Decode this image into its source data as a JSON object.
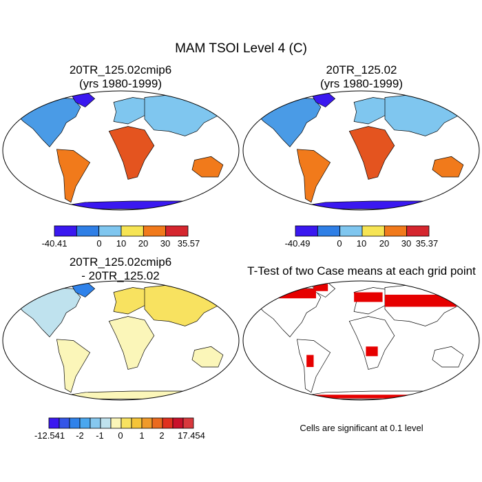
{
  "main_title": "MAM TSOI Level 4 (C)",
  "panels": [
    {
      "title_line1": "20TR_125.02cmip6",
      "title_line2": "(yrs 1980-1999)",
      "colorbar": {
        "colors": [
          "#3a18f0",
          "#2f7fe6",
          "#7fc6ef",
          "#f6e454",
          "#f17a1b",
          "#d5262e"
        ],
        "labels": [
          "-40.41",
          "0",
          "10",
          "20",
          "30",
          "35.57"
        ]
      }
    },
    {
      "title_line1": "20TR_125.02",
      "title_line2": "(yrs 1980-1999)",
      "colorbar": {
        "colors": [
          "#3a18f0",
          "#2f7fe6",
          "#7fc6ef",
          "#f6e454",
          "#f17a1b",
          "#d5262e"
        ],
        "labels": [
          "-40.49",
          "0",
          "10",
          "20",
          "30",
          "35.37"
        ]
      }
    },
    {
      "title_line1": "20TR_125.02cmip6",
      "title_line2": "- 20TR_125.02",
      "colorbar": {
        "colors": [
          "#3a18f0",
          "#3456e8",
          "#2f82ea",
          "#4aa7ef",
          "#86c8ef",
          "#bfe2ee",
          "#fbf6b9",
          "#f8e260",
          "#f5c438",
          "#f09a2a",
          "#ea6a1f",
          "#e0301e",
          "#c9102a",
          "#d8383d"
        ],
        "labels": [
          "-12.541",
          "-2",
          "-1",
          "0",
          "1",
          "2",
          "17.454"
        ]
      }
    },
    {
      "title_line1": "T-Test of two Case means at each grid point",
      "note": "Cells are significant at 0.1 level",
      "sig_color": "#e60000"
    }
  ]
}
